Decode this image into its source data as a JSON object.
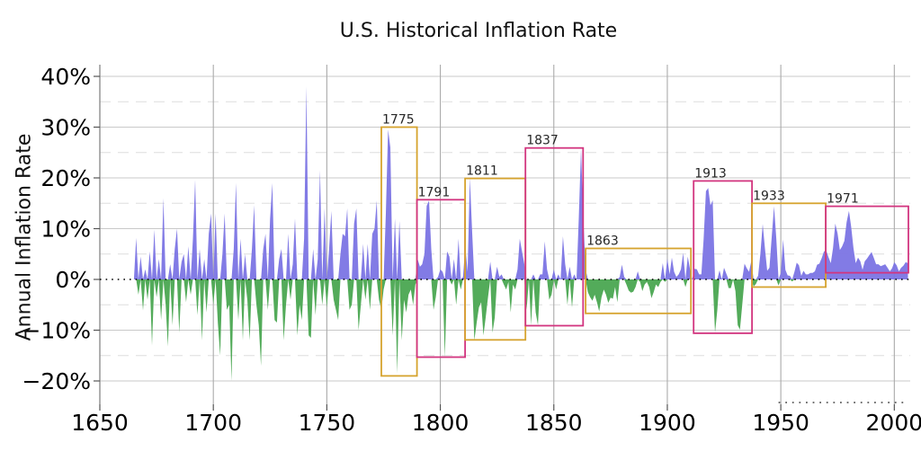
{
  "page": {
    "background": "#ffffff"
  },
  "chart_data": {
    "type": "area",
    "title": "U.S. Historical Inflation Rate",
    "xlabel": "",
    "ylabel": "Annual Inflation Rate",
    "xlim": [
      1650,
      2007
    ],
    "ylim": [
      -24.6,
      42.3
    ],
    "x_ticks": [
      {
        "value": 1650,
        "label": "1650"
      },
      {
        "value": 1700,
        "label": "1700"
      },
      {
        "value": 1750,
        "label": "1750"
      },
      {
        "value": 1800,
        "label": "1800"
      },
      {
        "value": 1850,
        "label": "1850"
      },
      {
        "value": 1900,
        "label": "1900"
      },
      {
        "value": 1950,
        "label": "1950"
      },
      {
        "value": 2000,
        "label": "2000"
      }
    ],
    "y_ticks": [
      {
        "value": 40,
        "label": "40%"
      },
      {
        "value": 30,
        "label": "30%"
      },
      {
        "value": 20,
        "label": "20%"
      },
      {
        "value": 10,
        "label": "10%"
      },
      {
        "value": 0,
        "label": "0%"
      },
      {
        "value": -10,
        "label": "−10%"
      },
      {
        "value": -20,
        "label": "−20%"
      }
    ],
    "grid": {
      "major_horizontal": [
        40,
        30,
        20,
        10,
        -10,
        -20
      ],
      "minor_horizontal_dashed": [
        35,
        25,
        15,
        5,
        -5,
        -15
      ],
      "vertical": [
        1650,
        1700,
        1750,
        1800,
        1850,
        1900,
        1950,
        2000
      ],
      "zero_line_style": "dotted",
      "minor_x_dotted_ticks": {
        "from_year": 1949,
        "to_year": 2006
      }
    },
    "colors": {
      "positive_fill": "#7b74e4",
      "negative_fill": "#4aa751",
      "zero_line": "#000000",
      "grid_major": "#c9c9c9",
      "grid_minor": "#dedede",
      "grid_vertical": "#ababab",
      "spine": "#8a8a8a",
      "tick": "#555555",
      "annotation_orange": "#d6a32e",
      "annotation_magenta": "#d2357f",
      "annotation_label": "#262626"
    },
    "series": {
      "name": "annual-inflation-rate",
      "unit": "percent",
      "start_year": 1665,
      "end_year": 2006,
      "values": [
        0.0,
        8.2,
        -3.0,
        4.5,
        -6.1,
        2.0,
        -4.0,
        5.5,
        -13.0,
        9.8,
        -3.5,
        4.0,
        -8.0,
        16.0,
        -5.0,
        -13.2,
        3.0,
        -9.0,
        6.0,
        10.0,
        -10.5,
        3.5,
        5.0,
        -4.5,
        6.5,
        -3.0,
        8.0,
        19.6,
        -7.0,
        6.0,
        -12.0,
        4.0,
        -6.5,
        9.0,
        13.0,
        -5.0,
        13.0,
        -8.5,
        -15.0,
        5.0,
        13.0,
        -6.0,
        -5.0,
        -20.0,
        6.0,
        19.0,
        -8.0,
        8.0,
        -12.0,
        5.0,
        -4.0,
        -12.0,
        6.0,
        14.6,
        -5.0,
        -9.0,
        -17.0,
        6.0,
        9.0,
        -6.0,
        12.0,
        19.0,
        -8.0,
        -8.5,
        4.0,
        6.0,
        -12.0,
        -5.0,
        9.0,
        -4.0,
        3.0,
        12.0,
        -11.0,
        -5.0,
        -8.0,
        8.0,
        38.0,
        -11.0,
        -11.5,
        6.0,
        -7.0,
        4.0,
        21.5,
        -5.0,
        14.0,
        -5.5,
        6.0,
        13.5,
        -4.0,
        -6.0,
        -8.0,
        5.0,
        9.0,
        8.5,
        14.0,
        -6.0,
        -5.0,
        11.0,
        14.0,
        -10.0,
        -5.0,
        7.0,
        -4.0,
        7.0,
        -6.0,
        9.0,
        10.0,
        15.5,
        -4.0,
        -6.0,
        -2.0,
        13.0,
        29.5,
        26.0,
        -11.0,
        12.0,
        -18.5,
        11.5,
        -12.0,
        -4.0,
        -6.5,
        -3.0,
        -2.0,
        -5.0,
        -1.0,
        4.0,
        2.5,
        3.0,
        5.0,
        14.5,
        15.5,
        6.0,
        -6.0,
        -3.5,
        0.5,
        2.0,
        1.5,
        -15.3,
        5.5,
        4.5,
        -1.0,
        4.0,
        -5.0,
        8.0,
        -2.0,
        0.5,
        6.5,
        1.5,
        20.0,
        9.5,
        -12.0,
        -8.5,
        -5.5,
        -4.5,
        -11.0,
        -7.5,
        -3.5,
        3.5,
        -10.5,
        -7.5,
        2.5,
        0.5,
        1.0,
        -1.0,
        -2.0,
        -0.5,
        -6.5,
        -1.0,
        -2.0,
        2.0,
        8.0,
        5.5,
        3.0,
        -6.0,
        0.0,
        -9.0,
        1.0,
        -6.5,
        -9.0,
        1.0,
        1.0,
        7.5,
        2.0,
        -4.0,
        -3.0,
        2.0,
        -2.0,
        1.0,
        0.0,
        8.5,
        3.0,
        -5.0,
        2.5,
        -5.5,
        1.0,
        0.0,
        12.0,
        25.8,
        12.0,
        2.0,
        -2.5,
        -3.5,
        -4.2,
        -3.0,
        -4.5,
        -6.3,
        -3.5,
        -2.0,
        -3.0,
        -4.6,
        -3.6,
        -3.8,
        -1.5,
        -4.5,
        0.5,
        2.9,
        0.5,
        -1.0,
        -2.2,
        -2.6,
        -2.4,
        -1.5,
        1.6,
        -0.5,
        -2.3,
        -1.0,
        -0.5,
        -1.5,
        -3.7,
        -2.5,
        -1.0,
        -1.5,
        -0.5,
        3.2,
        -0.5,
        4.1,
        1.0,
        4.3,
        1.5,
        0.5,
        1.0,
        2.0,
        5.2,
        -1.5,
        4.5,
        2.0,
        0.0,
        2.1,
        2.0,
        1.0,
        1.0,
        7.9,
        17.4,
        18.0,
        14.6,
        15.6,
        -10.5,
        -6.1,
        1.8,
        0.0,
        2.3,
        1.1,
        -1.7,
        -1.7,
        0.0,
        -2.3,
        -9.0,
        -9.9,
        -5.1,
        3.1,
        2.2,
        1.5,
        3.6,
        -1.4,
        -0.9,
        0.7,
        5.0,
        10.9,
        6.1,
        1.7,
        2.3,
        8.3,
        14.4,
        8.1,
        -1.2,
        1.3,
        7.9,
        1.9,
        0.8,
        0.7,
        -0.4,
        1.5,
        3.3,
        2.8,
        0.7,
        1.7,
        1.0,
        1.0,
        1.3,
        1.3,
        1.6,
        2.9,
        3.1,
        4.2,
        5.5,
        5.7,
        4.4,
        3.2,
        6.2,
        11.0,
        9.1,
        5.8,
        6.5,
        7.6,
        11.3,
        13.5,
        10.3,
        6.2,
        3.2,
        4.3,
        3.6,
        1.9,
        3.6,
        4.1,
        4.8,
        5.4,
        4.2,
        3.0,
        3.0,
        2.6,
        2.8,
        3.0,
        2.3,
        1.6,
        2.2,
        3.4,
        2.8,
        1.6,
        2.3,
        2.7,
        3.4,
        3.2
      ]
    },
    "annotations": [
      {
        "label": "1775",
        "x1": 1774.0,
        "x2": 1789.7,
        "y1": -19.0,
        "y2": 30.0,
        "color": "orange"
      },
      {
        "label": "1791",
        "x1": 1789.7,
        "x2": 1810.9,
        "y1": -15.3,
        "y2": 15.7,
        "color": "magenta"
      },
      {
        "label": "1811",
        "x1": 1810.9,
        "x2": 1837.5,
        "y1": -11.9,
        "y2": 19.9,
        "color": "orange"
      },
      {
        "label": "1837",
        "x1": 1837.5,
        "x2": 1862.9,
        "y1": -9.1,
        "y2": 25.9,
        "color": "magenta"
      },
      {
        "label": "1863",
        "x1": 1864.0,
        "x2": 1910.4,
        "y1": -6.7,
        "y2": 6.1,
        "color": "orange"
      },
      {
        "label": "1913",
        "x1": 1911.6,
        "x2": 1937.3,
        "y1": -10.6,
        "y2": 19.4,
        "color": "magenta"
      },
      {
        "label": "1933",
        "x1": 1937.3,
        "x2": 1969.8,
        "y1": -1.5,
        "y2": 15.0,
        "color": "orange"
      },
      {
        "label": "1971",
        "x1": 1969.8,
        "x2": 2006.2,
        "y1": 1.3,
        "y2": 14.4,
        "color": "magenta"
      }
    ]
  }
}
